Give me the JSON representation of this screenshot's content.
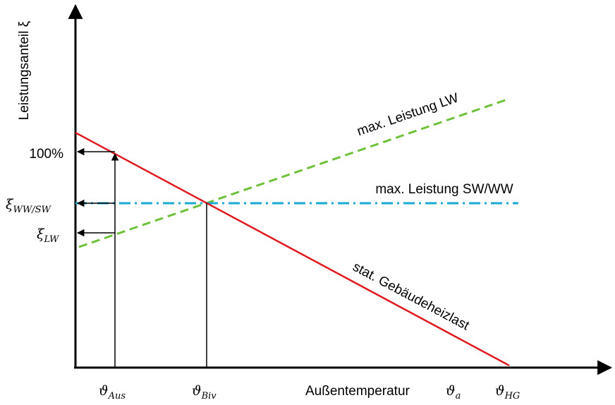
{
  "axes": {
    "y_label": "Leistungsanteil ξ",
    "x_label": "Außentemperatur"
  },
  "y_ticks": [
    {
      "text": "100%"
    },
    {
      "symbol": "ξ",
      "subscript": "WW/SW"
    },
    {
      "symbol": "ξ",
      "subscript": "LW"
    }
  ],
  "x_ticks": [
    {
      "symbol": "ϑ",
      "subscript": "Aus"
    },
    {
      "symbol": "ϑ",
      "subscript": "Biv"
    },
    {
      "symbol": "ϑ",
      "subscript": "a"
    },
    {
      "symbol": "ϑ",
      "subscript": "HG"
    }
  ],
  "lines": [
    {
      "label": "max. Leistung LW"
    },
    {
      "label": "max. Leistung SW/WW"
    },
    {
      "label": "stat. Gebäudeheizlast"
    }
  ]
}
